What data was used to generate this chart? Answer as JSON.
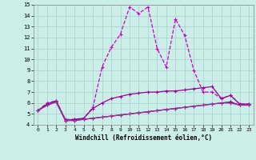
{
  "xlabel": "Windchill (Refroidissement éolien,°C)",
  "background_color": "#cceee8",
  "grid_color": "#aad4ce",
  "line_color1": "#cc00cc",
  "line_color2": "#990099",
  "line_color3": "#660066",
  "line_color4": "#993399",
  "x": [
    0,
    1,
    2,
    3,
    4,
    5,
    6,
    7,
    8,
    9,
    10,
    11,
    12,
    13,
    14,
    15,
    16,
    17,
    18,
    19,
    20,
    21,
    22,
    23
  ],
  "series1": [
    5.3,
    6.0,
    6.2,
    4.5,
    4.5,
    4.6,
    5.6,
    9.3,
    11.1,
    12.3,
    14.8,
    14.2,
    14.8,
    11.0,
    9.3,
    13.7,
    12.2,
    9.0,
    7.0,
    7.0,
    6.4,
    6.7,
    5.9,
    5.9
  ],
  "series2": [
    5.3,
    5.9,
    6.2,
    4.4,
    4.5,
    4.6,
    5.5,
    6.0,
    6.4,
    6.6,
    6.8,
    6.9,
    7.0,
    7.0,
    7.1,
    7.1,
    7.2,
    7.3,
    7.4,
    7.5,
    6.4,
    6.7,
    5.9,
    5.9
  ],
  "series3": [
    5.3,
    5.8,
    6.1,
    4.4,
    4.4,
    4.5,
    4.6,
    4.7,
    4.8,
    4.9,
    5.0,
    5.1,
    5.2,
    5.3,
    5.4,
    5.5,
    5.6,
    5.7,
    5.8,
    5.9,
    6.0,
    6.1,
    5.8,
    5.8
  ],
  "series4": [
    5.3,
    5.8,
    6.1,
    4.4,
    4.4,
    4.5,
    4.6,
    4.7,
    4.8,
    4.9,
    5.0,
    5.1,
    5.2,
    5.3,
    5.4,
    5.5,
    5.6,
    5.7,
    5.8,
    5.9,
    6.0,
    6.0,
    5.8,
    5.8
  ],
  "ylim": [
    4,
    15
  ],
  "xlim": [
    -0.5,
    23.5
  ],
  "yticks": [
    4,
    5,
    6,
    7,
    8,
    9,
    10,
    11,
    12,
    13,
    14,
    15
  ],
  "xticks": [
    0,
    1,
    2,
    3,
    4,
    5,
    6,
    7,
    8,
    9,
    10,
    11,
    12,
    13,
    14,
    15,
    16,
    17,
    18,
    19,
    20,
    21,
    22,
    23
  ]
}
